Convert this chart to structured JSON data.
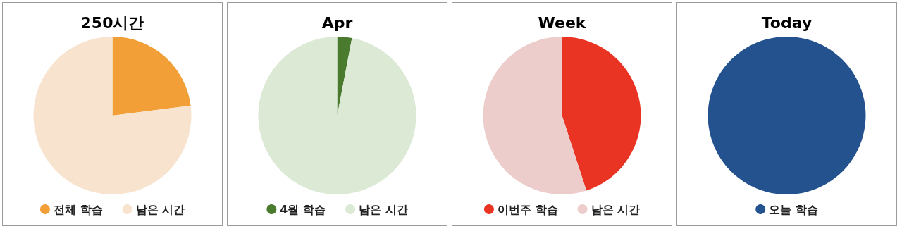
{
  "chart_data": [
    {
      "type": "pie",
      "title": "250시간",
      "categories": [
        "전체 학습",
        "남은 시간"
      ],
      "values": [
        23,
        77
      ],
      "colors": [
        "#f29f38",
        "#f8e3cf"
      ],
      "legend": "bottom"
    },
    {
      "type": "pie",
      "title": "Apr",
      "categories": [
        "4월 학습",
        "남은 시간"
      ],
      "values": [
        3,
        97
      ],
      "colors": [
        "#4a7a2e",
        "#dce9d5"
      ],
      "legend": "bottom"
    },
    {
      "type": "pie",
      "title": "Week",
      "categories": [
        "이번주 학습",
        "남은 시간"
      ],
      "values": [
        45,
        55
      ],
      "colors": [
        "#e93323",
        "#eccdcc"
      ],
      "legend": "bottom"
    },
    {
      "type": "pie",
      "title": "Today",
      "categories": [
        "오늘 학습"
      ],
      "values": [
        100
      ],
      "colors": [
        "#23528e"
      ],
      "legend": "bottom"
    }
  ]
}
